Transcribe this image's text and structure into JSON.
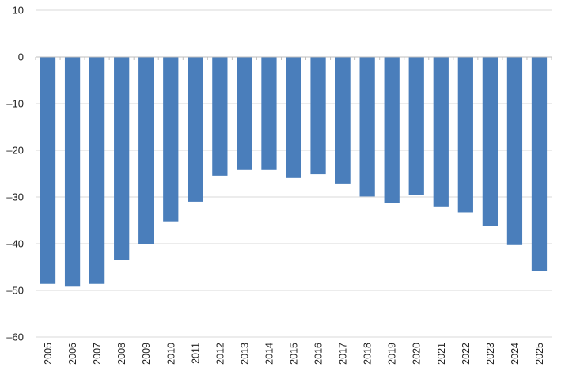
{
  "chart_data": {
    "type": "bar",
    "title": "",
    "xlabel": "",
    "ylabel": "",
    "categories": [
      "2005",
      "2006",
      "2007",
      "2008",
      "2009",
      "2010",
      "2011",
      "2012",
      "2013",
      "2014",
      "2015",
      "2016",
      "2017",
      "2018",
      "2019",
      "2020",
      "2021",
      "2022",
      "2023",
      "2024",
      "2025"
    ],
    "values": [
      -48.6,
      -49.2,
      -48.6,
      -43.5,
      -40.0,
      -35.2,
      -31.0,
      -25.4,
      -24.2,
      -24.2,
      -25.9,
      -25.1,
      -27.1,
      -29.9,
      -31.2,
      -29.5,
      -32.0,
      -33.3,
      -36.2,
      -40.3,
      -45.8
    ],
    "ylim": [
      -60,
      10
    ],
    "yticks": [
      10,
      0,
      -10,
      -20,
      -30,
      -40,
      -50,
      -60
    ],
    "ytick_labels": [
      "10",
      "0",
      "–10",
      "–20",
      "–30",
      "–40",
      "–50",
      "–60"
    ],
    "grid": true,
    "bar_color": "#4a7ebb"
  }
}
